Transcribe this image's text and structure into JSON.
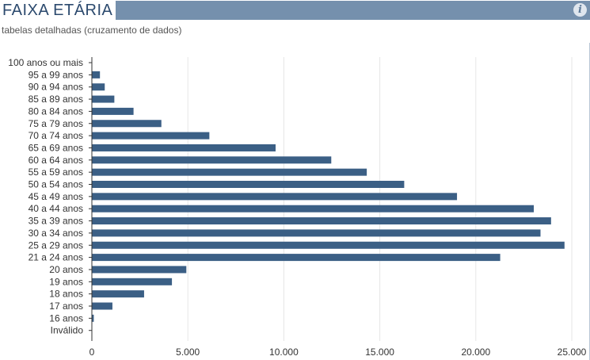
{
  "header": {
    "title": "FAIXA ETÁRIA",
    "subtitle_link": "tabelas detalhadas (cruzamento de dados)",
    "info_icon": "info-icon"
  },
  "colors": {
    "bar": "#3b5f85",
    "title_bar": "#7590ad",
    "title_text": "#2c4a6e",
    "grid": "#e6e6e6"
  },
  "chart_data": {
    "type": "bar",
    "orientation": "horizontal",
    "title": "",
    "xlabel": "",
    "ylabel": "",
    "xlim": [
      0,
      25000
    ],
    "x_ticks": [
      "0",
      "5.000",
      "10.000",
      "15.000",
      "20.000",
      "25.000"
    ],
    "x_tick_values": [
      0,
      5000,
      10000,
      15000,
      20000,
      25000
    ],
    "grid": true,
    "categories": [
      "100 anos ou mais",
      "95 a 99 anos",
      "90 a 94 anos",
      "85 a 89 anos",
      "80 a 84 anos",
      "75 a 79 anos",
      "70 a 74 anos",
      "65 a 69 anos",
      "60 a 64 anos",
      "55 a 59 anos",
      "50 a 54 anos",
      "45 a 49 anos",
      "40 a 44 anos",
      "35 a 39 anos",
      "30 a 34 anos",
      "25 a 29 anos",
      "21 a 24 anos",
      "20 anos",
      "19 anos",
      "18 anos",
      "17 anos",
      "16 anos",
      "Inválido"
    ],
    "values": [
      0,
      400,
      650,
      1150,
      2150,
      3600,
      6100,
      9550,
      12450,
      14300,
      16250,
      19000,
      23000,
      23900,
      23350,
      24600,
      21250,
      4900,
      4150,
      2700,
      1050,
      80,
      0
    ]
  }
}
